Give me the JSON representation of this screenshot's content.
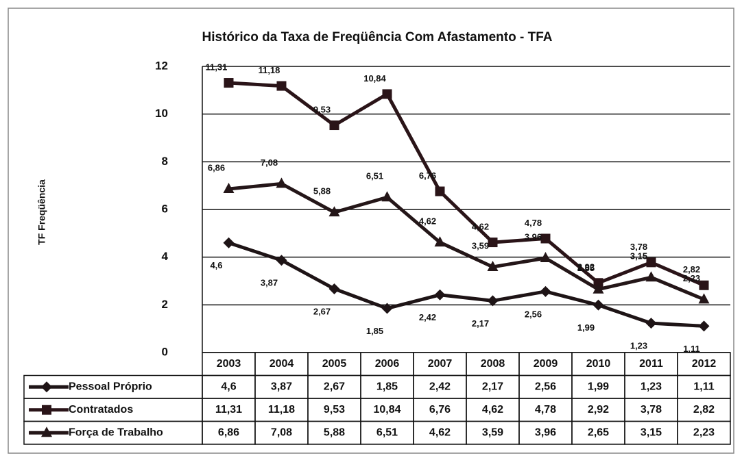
{
  "chart_data": {
    "type": "line",
    "title": "Histórico da Taxa de Freqüência Com Afastamento - TFA",
    "y_label": "TF Freqüência",
    "categories": [
      "2003",
      "2004",
      "2005",
      "2006",
      "2007",
      "2008",
      "2009",
      "2010",
      "2011",
      "2012"
    ],
    "series": [
      {
        "name": "Pessoal Próprio",
        "color": "#1e1416",
        "marker": "diamond",
        "values": [
          4.6,
          3.87,
          2.67,
          1.85,
          2.42,
          2.17,
          2.56,
          1.99,
          1.23,
          1.11
        ],
        "value_labels": [
          "4,6",
          "3,87",
          "2,67",
          "1,85",
          "2,42",
          "2,17",
          "2,56",
          "1,99",
          "1,23",
          "1,11"
        ]
      },
      {
        "name": "Contratados",
        "color": "#2a1418",
        "marker": "square",
        "values": [
          11.31,
          11.18,
          9.53,
          10.84,
          6.76,
          4.62,
          4.78,
          2.92,
          3.78,
          2.82
        ],
        "value_labels": [
          "11,31",
          "11,18",
          "9,53",
          "10,84",
          "6,76",
          "4,62",
          "4,78",
          "2,92",
          "3,78",
          "2,82"
        ]
      },
      {
        "name": "Força de Trabalho",
        "color": "#241618",
        "marker": "triangle",
        "values": [
          6.86,
          7.08,
          5.88,
          6.51,
          4.62,
          3.59,
          3.96,
          2.65,
          3.15,
          2.23
        ],
        "value_labels": [
          "6,86",
          "7,08",
          "5,88",
          "6,51",
          "4,62",
          "3,59",
          "3,96",
          "2,65",
          "3,15",
          "2,23"
        ]
      }
    ],
    "ylim": [
      0,
      12
    ],
    "yticks": [
      0,
      2,
      4,
      6,
      8,
      10,
      12
    ],
    "grid": true,
    "data_table": true
  }
}
